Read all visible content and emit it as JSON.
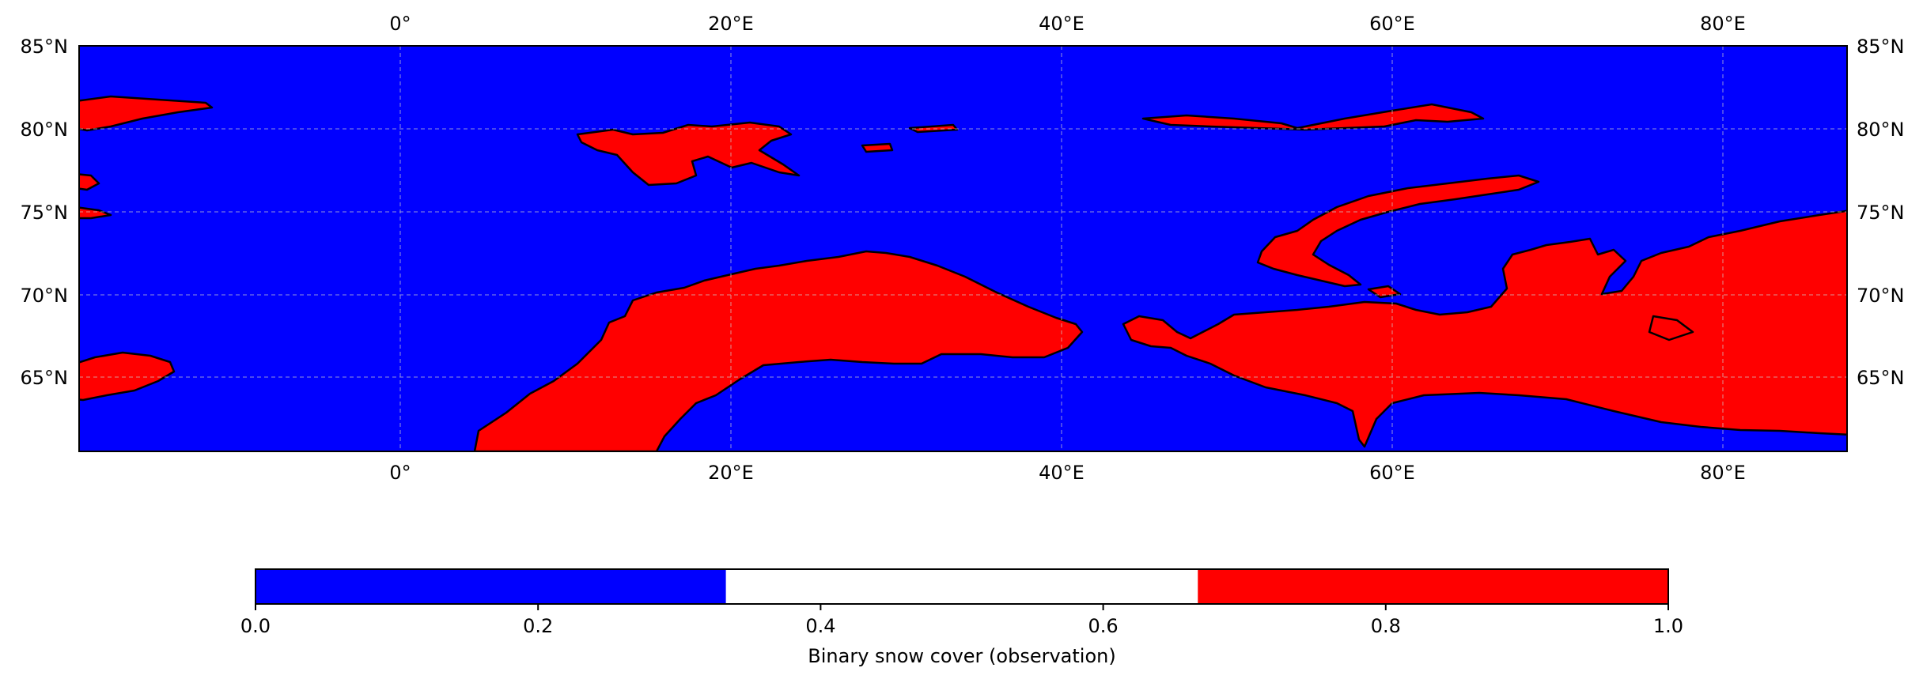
{
  "map": {
    "lon_ticks": [
      {
        "lon": 0,
        "label": "0°"
      },
      {
        "lon": 20,
        "label": "20°E"
      },
      {
        "lon": 40,
        "label": "40°E"
      },
      {
        "lon": 60,
        "label": "60°E"
      },
      {
        "lon": 80,
        "label": "80°E"
      }
    ],
    "lat_ticks": [
      {
        "lat": 85,
        "label": "85°N"
      },
      {
        "lat": 80,
        "label": "80°N"
      },
      {
        "lat": 75,
        "label": "75°N"
      },
      {
        "lat": 70,
        "label": "70°N"
      },
      {
        "lat": 65,
        "label": "65°N"
      }
    ],
    "colors": {
      "no_snow": "#0000ff",
      "snow": "#ff0000",
      "coast": "#000000",
      "grid": "#d0d0d0"
    }
  },
  "colorbar": {
    "label": "Binary snow cover (observation)",
    "ticks": [
      "0.0",
      "0.2",
      "0.4",
      "0.6",
      "0.8",
      "1.0"
    ],
    "segments": [
      {
        "from": 0.0,
        "to": 0.333,
        "color": "#0000ff"
      },
      {
        "from": 0.333,
        "to": 0.667,
        "color": "#ffffff"
      },
      {
        "from": 0.667,
        "to": 1.0,
        "color": "#ff0000"
      }
    ]
  }
}
